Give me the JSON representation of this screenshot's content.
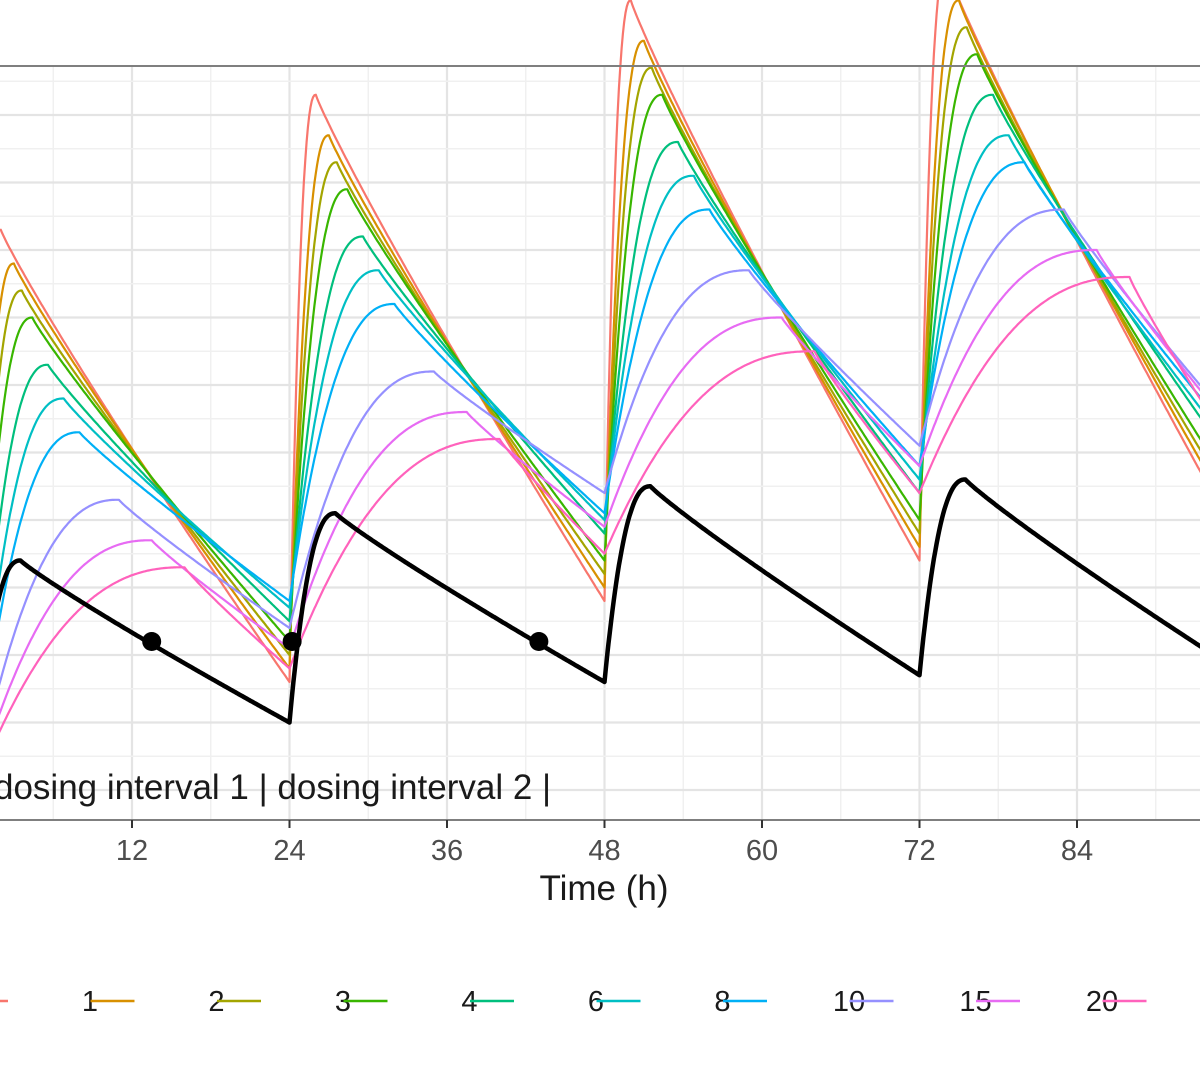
{
  "chart_data": {
    "type": "line",
    "title": "",
    "xlabel": "Time (h)",
    "ylabel": "",
    "xlim": [
      -3.5,
      96
    ],
    "ylim": [
      0,
      100
    ],
    "x_ticks": [
      12,
      24,
      36,
      48,
      60,
      72,
      84
    ],
    "x_tick_labels": [
      "12",
      "24",
      "36",
      "48",
      "60",
      "72",
      "84"
    ],
    "grid": true,
    "legend_position": "bottom",
    "annotation": "dosing interval 1 | dosing interval 2 |",
    "dose_times": [
      0,
      24,
      48,
      72
    ],
    "series": [
      {
        "name": "1",
        "color": "#F8766D",
        "peak_time": 2.0,
        "peak": [
          83,
          103,
          117,
          122
        ],
        "trough": [
          16,
          28,
          34,
          38
        ]
      },
      {
        "name": "2",
        "color": "#D89000",
        "peak_time": 3.0,
        "peak": [
          78,
          97,
          111,
          117
        ],
        "trough": [
          18,
          30,
          36,
          40
        ]
      },
      {
        "name": "3",
        "color": "#A3A500",
        "peak_time": 3.6,
        "peak": [
          74,
          93,
          107,
          113
        ],
        "trough": [
          20,
          32,
          38,
          42
        ]
      },
      {
        "name": "4",
        "color": "#39B600",
        "peak_time": 4.4,
        "peak": [
          70,
          89,
          103,
          109
        ],
        "trough": [
          22,
          34,
          40,
          44
        ]
      },
      {
        "name": "6",
        "color": "#00BF7D",
        "peak_time": 5.6,
        "peak": [
          63,
          82,
          96,
          103
        ],
        "trough": [
          25,
          38,
          44,
          48
        ]
      },
      {
        "name": "8",
        "color": "#00BFC4",
        "peak_time": 6.8,
        "peak": [
          58,
          77,
          91,
          97
        ],
        "trough": [
          27,
          40,
          46,
          50
        ]
      },
      {
        "name": "10",
        "color": "#00B0F6",
        "peak_time": 8.0,
        "peak": [
          53,
          72,
          86,
          93
        ],
        "trough": [
          28,
          41,
          48,
          52
        ]
      },
      {
        "name": "15",
        "color": "#9590FF",
        "peak_time": 11.0,
        "peak": [
          43,
          62,
          77,
          86
        ],
        "trough": [
          24,
          44,
          51,
          54
        ]
      },
      {
        "name": "20",
        "color": "#E76BF3",
        "peak_time": 13.5,
        "peak": [
          37,
          56,
          70,
          80
        ],
        "trough": [
          21,
          39,
          48,
          53
        ]
      },
      {
        "name": "",
        "color": "#FF62BC",
        "peak_time": 16.0,
        "peak": [
          33,
          52,
          65,
          76
        ],
        "trough": [
          18,
          35,
          44,
          50
        ]
      },
      {
        "name": "",
        "color": "#000000",
        "stroke_width": 4.5,
        "peak_time": 3.5,
        "peak": [
          34,
          41,
          45,
          46
        ],
        "trough": [
          10,
          16,
          17,
          18
        ],
        "highlight_points": [
          {
            "x": 13.5,
            "y": 22
          },
          {
            "x": 24.2,
            "y": 22
          },
          {
            "x": 43,
            "y": 22
          }
        ]
      }
    ]
  }
}
